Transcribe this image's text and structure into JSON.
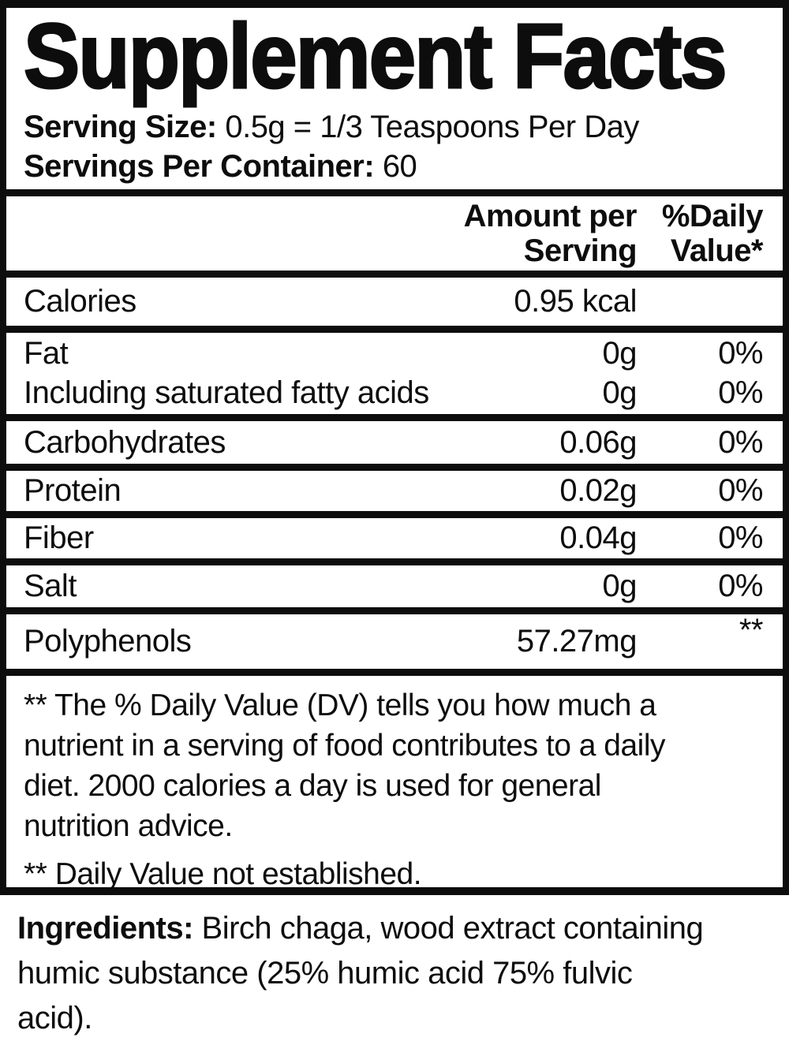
{
  "label": {
    "title": "Supplement Facts",
    "serving_size_label": "Serving Size:",
    "serving_size_value": "0.5g = 1/3 Teaspoons Per Day",
    "servings_per_container_label": "Servings Per Container:",
    "servings_per_container_value": "60"
  },
  "table": {
    "amount_header_line1": "Amount per",
    "amount_header_line2": "Serving",
    "dv_header_line1": "%Daily",
    "dv_header_line2": "Value*",
    "rows": [
      {
        "name": "Calories",
        "amount": "0.95 kcal",
        "dv": ""
      },
      {
        "name": "Fat",
        "amount": "0g",
        "dv": "0%"
      },
      {
        "name": "Including saturated fatty acids",
        "amount": "0g",
        "dv": "0%"
      },
      {
        "name": "Carbohydrates",
        "amount": "0.06g",
        "dv": "0%"
      },
      {
        "name": "Protein",
        "amount": "0.02g",
        "dv": "0%"
      },
      {
        "name": "Fiber",
        "amount": "0.04g",
        "dv": "0%"
      },
      {
        "name": "Salt",
        "amount": "0g",
        "dv": "0%"
      },
      {
        "name": "Polyphenols",
        "amount": "57.27mg",
        "dv": "**"
      }
    ]
  },
  "footnote": {
    "dv_explanation_lines": [
      "** The % Daily Value (DV) tells you how much a",
      "nutrient in a serving of food contributes to a daily",
      "diet. 2000 calories a day is used for general",
      "nutrition advice."
    ],
    "dv_not_established": "** Daily Value not established."
  },
  "ingredients": {
    "label": "Ingredients:",
    "lines": [
      "Birch chaga, wood extract containing",
      "humic substance (25% humic acid 75% fulvic",
      "acid)."
    ]
  },
  "colors": {
    "text": "#0d0d0d",
    "background": "#ffffff"
  }
}
